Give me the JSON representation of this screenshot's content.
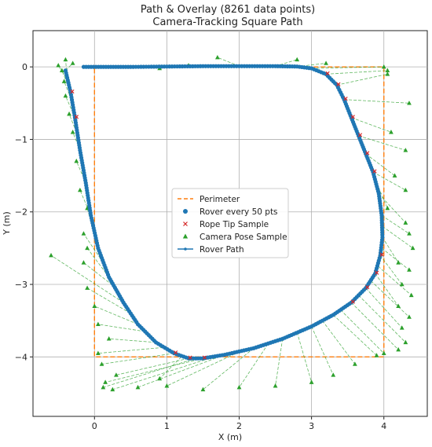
{
  "chart_data": {
    "type": "line",
    "title": "Path & Overlay (8261 data points)",
    "subtitle": "Camera-Tracking Square Path",
    "xlabel": "X (m)",
    "ylabel": "Y (m)",
    "xlim": [
      -0.85,
      4.6
    ],
    "ylim": [
      -4.82,
      0.5
    ],
    "xticks": [
      0,
      1,
      2,
      3,
      4
    ],
    "yticks": [
      0,
      -1,
      -2,
      -3,
      -4
    ],
    "grid": true,
    "legend_position": "center",
    "legend": [
      {
        "label": "Perimeter",
        "marker": "dashed-line",
        "color": "#ff7f0e"
      },
      {
        "label": "Rover every 50 pts",
        "marker": "circle",
        "color": "#1f77b4"
      },
      {
        "label": "Rope Tip Sample",
        "marker": "x",
        "color": "#d62728"
      },
      {
        "label": "Camera Pose Sample",
        "marker": "triangle",
        "color": "#2ca02c"
      },
      {
        "label": "Rover Path",
        "marker": "line-dot",
        "color": "#1f77b4"
      }
    ],
    "perimeter": {
      "name": "Perimeter",
      "color": "#ff7f0e",
      "points": [
        [
          0,
          0
        ],
        [
          4,
          0
        ],
        [
          4,
          -4
        ],
        [
          0,
          -4
        ],
        [
          0,
          0
        ]
      ]
    },
    "rover_path": {
      "name": "Rover Path",
      "color": "#1f77b4",
      "points": [
        [
          -0.15,
          0
        ],
        [
          0.5,
          0
        ],
        [
          1.0,
          0.005
        ],
        [
          1.5,
          0.01
        ],
        [
          2.0,
          0.01
        ],
        [
          2.5,
          0.01
        ],
        [
          2.8,
          0.005
        ],
        [
          3.0,
          -0.02
        ],
        [
          3.2,
          -0.1
        ],
        [
          3.35,
          -0.25
        ],
        [
          3.45,
          -0.45
        ],
        [
          3.55,
          -0.7
        ],
        [
          3.65,
          -0.95
        ],
        [
          3.75,
          -1.2
        ],
        [
          3.85,
          -1.45
        ],
        [
          3.93,
          -1.75
        ],
        [
          3.97,
          -2.05
        ],
        [
          3.98,
          -2.35
        ],
        [
          3.95,
          -2.6
        ],
        [
          3.88,
          -2.85
        ],
        [
          3.75,
          -3.05
        ],
        [
          3.55,
          -3.25
        ],
        [
          3.3,
          -3.42
        ],
        [
          3.0,
          -3.58
        ],
        [
          2.6,
          -3.75
        ],
        [
          2.2,
          -3.88
        ],
        [
          1.8,
          -3.97
        ],
        [
          1.5,
          -4.02
        ],
        [
          1.3,
          -4.02
        ],
        [
          1.1,
          -3.95
        ],
        [
          0.85,
          -3.8
        ],
        [
          0.6,
          -3.55
        ],
        [
          0.4,
          -3.25
        ],
        [
          0.2,
          -2.9
        ],
        [
          0.05,
          -2.5
        ],
        [
          -0.05,
          -2.05
        ],
        [
          -0.12,
          -1.6
        ],
        [
          -0.2,
          -1.15
        ],
        [
          -0.27,
          -0.7
        ],
        [
          -0.33,
          -0.35
        ],
        [
          -0.4,
          -0.05
        ]
      ]
    },
    "rover_samples": {
      "name": "Rover every 50 pts",
      "color": "#1f77b4",
      "sample_every": 50
    },
    "rope_tip_samples": {
      "name": "Rope Tip Sample",
      "color": "#d62728",
      "points": [
        [
          3.2,
          -0.1
        ],
        [
          3.35,
          -0.25
        ],
        [
          3.45,
          -0.45
        ],
        [
          3.55,
          -0.7
        ],
        [
          3.65,
          -0.95
        ],
        [
          3.75,
          -1.2
        ],
        [
          3.85,
          -1.45
        ],
        [
          3.95,
          -2.6
        ],
        [
          3.88,
          -2.85
        ],
        [
          3.75,
          -3.05
        ],
        [
          3.55,
          -3.25
        ],
        [
          1.5,
          -4.02
        ],
        [
          1.3,
          -4.02
        ],
        [
          1.1,
          -3.95
        ],
        [
          -0.27,
          -0.7
        ],
        [
          -0.33,
          -0.35
        ]
      ]
    },
    "camera_pose_samples": {
      "name": "Camera Pose Sample",
      "color": "#2ca02c",
      "rays": [
        [
          [
            2.0,
            0.01
          ],
          [
            1.7,
            0.13
          ]
        ],
        [
          [
            2.5,
            0.01
          ],
          [
            2.8,
            0.1
          ]
        ],
        [
          [
            2.8,
            0.005
          ],
          [
            3.2,
            0.05
          ]
        ],
        [
          [
            1.0,
            0.005
          ],
          [
            1.3,
            0.02
          ]
        ],
        [
          [
            0.5,
            0.0
          ],
          [
            0.9,
            -0.02
          ]
        ],
        [
          [
            3.0,
            -0.02
          ],
          [
            4.0,
            0.0
          ]
        ],
        [
          [
            3.2,
            -0.1
          ],
          [
            4.05,
            -0.05
          ]
        ],
        [
          [
            3.35,
            -0.25
          ],
          [
            4.05,
            -0.1
          ]
        ],
        [
          [
            3.45,
            -0.45
          ],
          [
            4.35,
            -0.5
          ]
        ],
        [
          [
            3.55,
            -0.7
          ],
          [
            4.1,
            -0.9
          ]
        ],
        [
          [
            3.65,
            -0.95
          ],
          [
            4.3,
            -1.15
          ]
        ],
        [
          [
            3.75,
            -1.2
          ],
          [
            4.15,
            -1.5
          ]
        ],
        [
          [
            3.85,
            -1.45
          ],
          [
            4.3,
            -1.7
          ]
        ],
        [
          [
            3.9,
            -1.6
          ],
          [
            4.05,
            -1.95
          ]
        ],
        [
          [
            3.93,
            -1.75
          ],
          [
            4.3,
            -2.15
          ]
        ],
        [
          [
            3.97,
            -2.05
          ],
          [
            4.35,
            -2.3
          ]
        ],
        [
          [
            3.98,
            -2.2
          ],
          [
            4.4,
            -2.5
          ]
        ],
        [
          [
            3.98,
            -2.35
          ],
          [
            4.2,
            -2.7
          ]
        ],
        [
          [
            3.97,
            -2.5
          ],
          [
            4.35,
            -2.8
          ]
        ],
        [
          [
            3.95,
            -2.6
          ],
          [
            4.25,
            -3.0
          ]
        ],
        [
          [
            3.92,
            -2.75
          ],
          [
            4.38,
            -3.15
          ]
        ],
        [
          [
            3.88,
            -2.85
          ],
          [
            4.2,
            -3.3
          ]
        ],
        [
          [
            3.82,
            -2.95
          ],
          [
            4.35,
            -3.45
          ]
        ],
        [
          [
            3.75,
            -3.05
          ],
          [
            4.25,
            -3.6
          ]
        ],
        [
          [
            3.65,
            -3.15
          ],
          [
            4.3,
            -3.8
          ]
        ],
        [
          [
            3.55,
            -3.25
          ],
          [
            4.2,
            -3.9
          ]
        ],
        [
          [
            3.4,
            -3.35
          ],
          [
            4.0,
            -3.95
          ]
        ],
        [
          [
            3.3,
            -3.42
          ],
          [
            3.9,
            -3.98
          ]
        ],
        [
          [
            3.15,
            -3.5
          ],
          [
            3.6,
            -4.1
          ]
        ],
        [
          [
            3.0,
            -3.58
          ],
          [
            3.3,
            -4.25
          ]
        ],
        [
          [
            2.8,
            -3.66
          ],
          [
            3.0,
            -4.35
          ]
        ],
        [
          [
            2.6,
            -3.75
          ],
          [
            2.5,
            -4.4
          ]
        ],
        [
          [
            2.4,
            -3.82
          ],
          [
            2.0,
            -4.42
          ]
        ],
        [
          [
            2.2,
            -3.88
          ],
          [
            1.5,
            -4.45
          ]
        ],
        [
          [
            2.0,
            -3.93
          ],
          [
            1.0,
            -4.4
          ]
        ],
        [
          [
            1.8,
            -3.97
          ],
          [
            0.6,
            -4.42
          ]
        ],
        [
          [
            1.65,
            -4.0
          ],
          [
            0.25,
            -4.45
          ]
        ],
        [
          [
            1.5,
            -4.02
          ],
          [
            0.15,
            -4.35
          ]
        ],
        [
          [
            1.4,
            -4.02
          ],
          [
            0.12,
            -4.42
          ]
        ],
        [
          [
            1.3,
            -4.02
          ],
          [
            0.3,
            -4.25
          ]
        ],
        [
          [
            1.2,
            -4.0
          ],
          [
            0.9,
            -4.3
          ]
        ],
        [
          [
            1.1,
            -3.95
          ],
          [
            0.1,
            -4.1
          ]
        ],
        [
          [
            0.95,
            -3.87
          ],
          [
            0.05,
            -3.95
          ]
        ],
        [
          [
            0.85,
            -3.8
          ],
          [
            0.2,
            -3.75
          ]
        ],
        [
          [
            0.7,
            -3.65
          ],
          [
            0.05,
            -3.55
          ]
        ],
        [
          [
            0.6,
            -3.55
          ],
          [
            0.0,
            -3.3
          ]
        ],
        [
          [
            0.5,
            -3.4
          ],
          [
            -0.1,
            -3.05
          ]
        ],
        [
          [
            0.4,
            -3.25
          ],
          [
            -0.6,
            -2.6
          ]
        ],
        [
          [
            0.3,
            -3.05
          ],
          [
            -0.15,
            -2.7
          ]
        ],
        [
          [
            0.2,
            -2.9
          ],
          [
            -0.1,
            -2.5
          ]
        ],
        [
          [
            0.12,
            -2.7
          ],
          [
            -0.15,
            -2.3
          ]
        ],
        [
          [
            0.05,
            -2.5
          ],
          [
            -0.1,
            -1.95
          ]
        ],
        [
          [
            -0.05,
            -2.05
          ],
          [
            -0.2,
            -1.7
          ]
        ],
        [
          [
            -0.12,
            -1.6
          ],
          [
            -0.25,
            -1.3
          ]
        ],
        [
          [
            -0.2,
            -1.15
          ],
          [
            -0.3,
            -0.9
          ]
        ],
        [
          [
            -0.25,
            -0.9
          ],
          [
            -0.35,
            -0.65
          ]
        ],
        [
          [
            -0.27,
            -0.7
          ],
          [
            -0.4,
            -0.4
          ]
        ],
        [
          [
            -0.3,
            -0.5
          ],
          [
            -0.42,
            -0.2
          ]
        ],
        [
          [
            -0.33,
            -0.35
          ],
          [
            -0.45,
            -0.05
          ]
        ],
        [
          [
            -0.36,
            -0.2
          ],
          [
            -0.5,
            0.02
          ]
        ],
        [
          [
            -0.38,
            -0.12
          ],
          [
            -0.4,
            0.1
          ]
        ],
        [
          [
            -0.4,
            -0.05
          ],
          [
            -0.3,
            0.05
          ]
        ]
      ]
    }
  }
}
